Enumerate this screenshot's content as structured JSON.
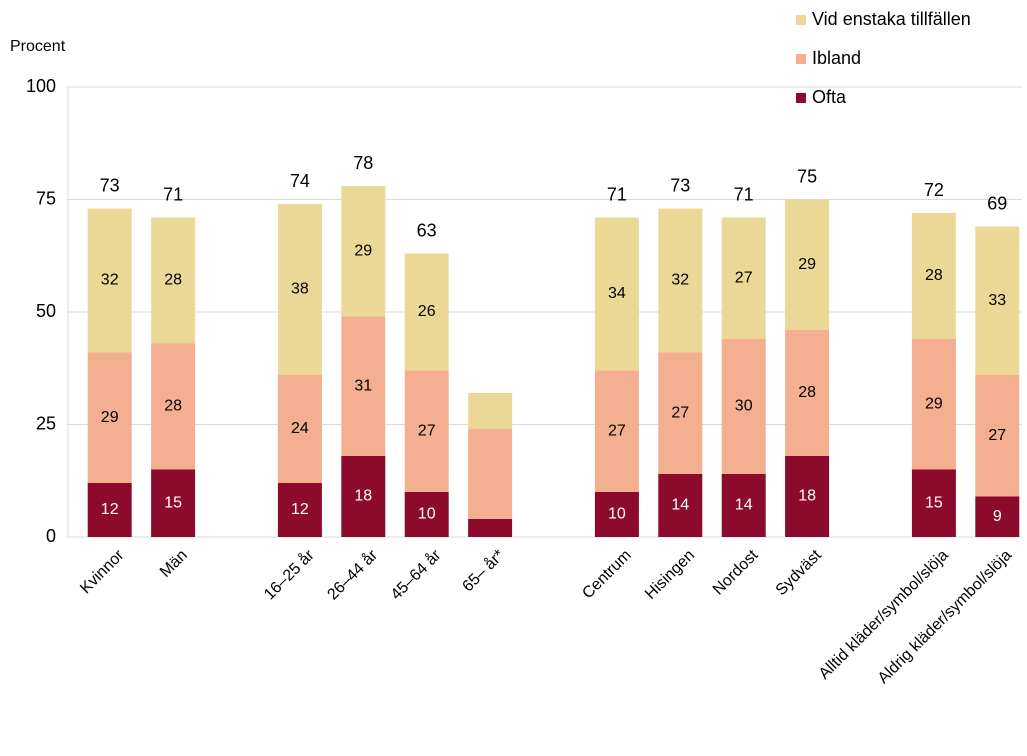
{
  "chart_data": {
    "type": "stacked_bar",
    "y_label": "Procent",
    "categories": [
      "Kvinnor",
      "Män",
      null,
      "16–25 år",
      "26–44 år",
      "45–64 år",
      "65– år*",
      null,
      "Centrum",
      "Hisingen",
      "Nordost",
      "Sydväst",
      null,
      "Alltid kläder/symbol/slöja",
      "Aldrig kläder/symbol/slöja"
    ],
    "series": [
      {
        "name": "Ofta",
        "color": "#8c0a2c",
        "label_color": "#ffffff",
        "values": [
          12,
          15,
          null,
          12,
          18,
          10,
          4,
          null,
          10,
          14,
          14,
          18,
          null,
          15,
          9
        ],
        "value_labels": [
          12,
          15,
          null,
          12,
          18,
          10,
          null,
          null,
          10,
          14,
          14,
          18,
          null,
          15,
          9
        ]
      },
      {
        "name": "Ibland",
        "color": "#f4ae90",
        "label_color": "#000000",
        "values": [
          29,
          28,
          null,
          24,
          31,
          27,
          20,
          null,
          27,
          27,
          30,
          28,
          null,
          29,
          27
        ],
        "value_labels": [
          29,
          28,
          null,
          24,
          31,
          27,
          null,
          null,
          27,
          27,
          30,
          28,
          null,
          29,
          27
        ]
      },
      {
        "name": "Vid enstaka tillfällen",
        "color": "#ecd896",
        "label_color": "#000000",
        "values": [
          32,
          28,
          null,
          38,
          29,
          26,
          8,
          null,
          34,
          32,
          27,
          29,
          null,
          28,
          33
        ],
        "value_labels": [
          32,
          28,
          null,
          38,
          29,
          26,
          null,
          null,
          34,
          32,
          27,
          29,
          null,
          28,
          33
        ]
      }
    ],
    "totals": [
      73,
      71,
      null,
      74,
      78,
      63,
      null,
      null,
      71,
      73,
      71,
      75,
      null,
      72,
      69
    ],
    "ylim": [
      0,
      100
    ],
    "yticks": [
      0,
      25,
      50,
      75,
      100
    ],
    "grid": true,
    "legend": "top-right"
  }
}
